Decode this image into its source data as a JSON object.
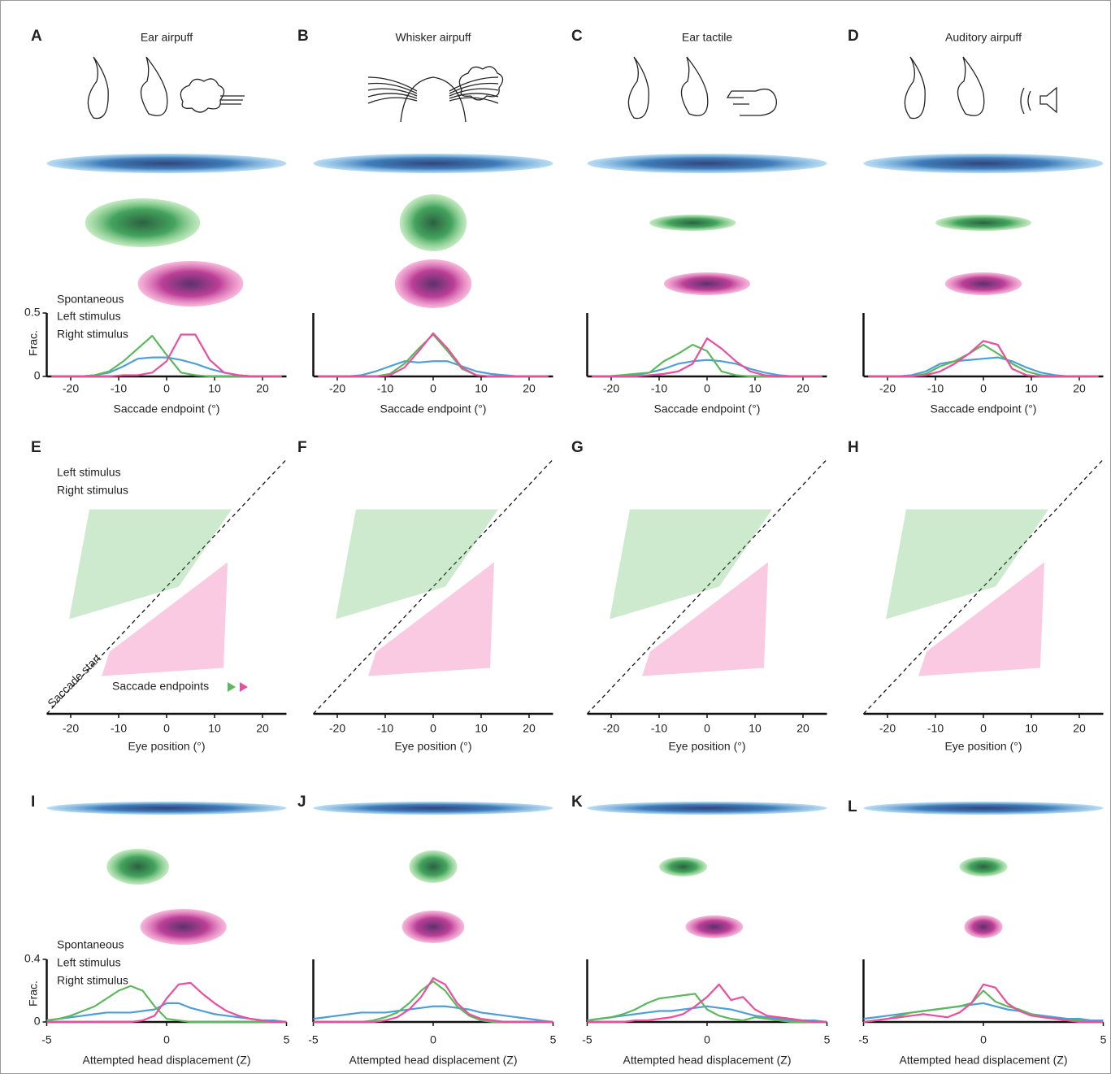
{
  "chart_data": [
    {
      "panel": "A",
      "type": "line",
      "title": "Ear airpuff",
      "xlabel": "Saccade endpoint (°)",
      "ylabel": "Frac.",
      "x": [
        -24,
        -21,
        -18,
        -15,
        -12,
        -9,
        -6,
        -3,
        0,
        3,
        6,
        9,
        12,
        15,
        18,
        21,
        24
      ],
      "xlim": [
        -25,
        25
      ],
      "xticks": [
        -20,
        -10,
        0,
        10,
        20
      ],
      "ylim": [
        0,
        0.5
      ],
      "yticks": [
        0,
        0.5
      ],
      "series": [
        {
          "name": "Spontaneous",
          "color": "#4f9fd6",
          "values": [
            0,
            0,
            0,
            0.01,
            0.03,
            0.08,
            0.14,
            0.15,
            0.15,
            0.13,
            0.1,
            0.06,
            0.03,
            0.01,
            0,
            0,
            0
          ]
        },
        {
          "name": "Left stimulus",
          "color": "#5cb85c",
          "values": [
            0,
            0,
            0,
            0.01,
            0.04,
            0.12,
            0.22,
            0.32,
            0.17,
            0.03,
            0.01,
            0,
            0,
            0,
            0,
            0,
            0
          ]
        },
        {
          "name": "Right stimulus",
          "color": "#ea4f9f",
          "values": [
            0,
            0,
            0,
            0,
            0,
            0.01,
            0.01,
            0.03,
            0.12,
            0.33,
            0.33,
            0.13,
            0.03,
            0.01,
            0,
            0,
            0
          ]
        }
      ]
    },
    {
      "panel": "B",
      "type": "line",
      "title": "Whisker airpuff",
      "xlabel": "Saccade endpoint (°)",
      "x": [
        -24,
        -21,
        -18,
        -15,
        -12,
        -9,
        -6,
        -3,
        0,
        3,
        6,
        9,
        12,
        15,
        18,
        21,
        24
      ],
      "xlim": [
        -25,
        25
      ],
      "xticks": [
        -20,
        -10,
        0,
        10,
        20
      ],
      "ylim": [
        0,
        0.5
      ],
      "series": [
        {
          "color": "#4f9fd6",
          "values": [
            0,
            0,
            0,
            0.01,
            0.04,
            0.08,
            0.12,
            0.11,
            0.12,
            0.12,
            0.08,
            0.04,
            0.02,
            0.01,
            0,
            0,
            0
          ]
        },
        {
          "color": "#5cb85c",
          "values": [
            0,
            0,
            0,
            0,
            0,
            0.02,
            0.1,
            0.22,
            0.33,
            0.2,
            0.06,
            0.01,
            0,
            0,
            0,
            0,
            0
          ]
        },
        {
          "color": "#ea4f9f",
          "values": [
            0,
            0,
            0,
            0,
            0,
            0.01,
            0.07,
            0.2,
            0.34,
            0.22,
            0.07,
            0.01,
            0,
            0,
            0,
            0,
            0
          ]
        }
      ]
    },
    {
      "panel": "C",
      "type": "line",
      "title": "Ear tactile",
      "xlabel": "Saccade endpoint (°)",
      "x": [
        -24,
        -21,
        -18,
        -15,
        -12,
        -9,
        -6,
        -3,
        0,
        3,
        6,
        9,
        12,
        15,
        18,
        21,
        24
      ],
      "xlim": [
        -25,
        25
      ],
      "xticks": [
        -20,
        -10,
        0,
        10,
        20
      ],
      "ylim": [
        0,
        0.5
      ],
      "series": [
        {
          "color": "#4f9fd6",
          "values": [
            0,
            0,
            0,
            0.01,
            0.03,
            0.06,
            0.1,
            0.12,
            0.13,
            0.12,
            0.1,
            0.06,
            0.03,
            0.01,
            0,
            0,
            0
          ]
        },
        {
          "color": "#5cb85c",
          "values": [
            0,
            0,
            0.01,
            0.02,
            0.03,
            0.12,
            0.18,
            0.25,
            0.2,
            0.04,
            0.01,
            0,
            0,
            0,
            0,
            0,
            0
          ]
        },
        {
          "color": "#ea4f9f",
          "values": [
            0,
            0,
            0,
            0,
            0.01,
            0.02,
            0.04,
            0.1,
            0.3,
            0.22,
            0.12,
            0.04,
            0.01,
            0,
            0,
            0,
            0
          ]
        }
      ]
    },
    {
      "panel": "D",
      "type": "line",
      "title": "Auditory airpuff",
      "xlabel": "Saccade endpoint (°)",
      "x": [
        -24,
        -21,
        -18,
        -15,
        -12,
        -9,
        -6,
        -3,
        0,
        3,
        6,
        9,
        12,
        15,
        18,
        21,
        24
      ],
      "xlim": [
        -25,
        25
      ],
      "xticks": [
        -20,
        -10,
        0,
        10,
        20
      ],
      "ylim": [
        0,
        0.5
      ],
      "series": [
        {
          "color": "#4f9fd6",
          "values": [
            0,
            0,
            0,
            0.01,
            0.04,
            0.1,
            0.12,
            0.13,
            0.14,
            0.15,
            0.12,
            0.07,
            0.03,
            0.01,
            0,
            0,
            0
          ]
        },
        {
          "color": "#5cb85c",
          "values": [
            0,
            0,
            0,
            0,
            0.02,
            0.08,
            0.12,
            0.18,
            0.25,
            0.18,
            0.1,
            0.04,
            0.01,
            0,
            0,
            0,
            0
          ]
        },
        {
          "color": "#ea4f9f",
          "values": [
            0,
            0,
            0,
            0,
            0.01,
            0.04,
            0.1,
            0.18,
            0.28,
            0.25,
            0.06,
            0.01,
            0,
            0,
            0,
            0,
            0
          ]
        }
      ]
    },
    {
      "panel": "E",
      "type": "arrows",
      "xlabel": "Eye position (°)",
      "xlim": [
        -25,
        25
      ],
      "xticks": [
        -20,
        -10,
        0,
        10,
        20
      ],
      "diagonal_label": "Saccade start",
      "endpoint_label": "Saccade endpoints",
      "series": [
        {
          "name": "Left stimulus",
          "color": "#5cb85c"
        },
        {
          "name": "Right stimulus",
          "color": "#ea4f9f"
        }
      ]
    },
    {
      "panel": "F",
      "type": "arrows",
      "xlabel": "Eye position (°)",
      "xlim": [
        -25,
        25
      ],
      "xticks": [
        -20,
        -10,
        0,
        10,
        20
      ]
    },
    {
      "panel": "G",
      "type": "arrows",
      "xlabel": "Eye position (°)",
      "xlim": [
        -25,
        25
      ],
      "xticks": [
        -20,
        -10,
        0,
        10,
        20
      ]
    },
    {
      "panel": "H",
      "type": "arrows",
      "xlabel": "Eye position (°)",
      "xlim": [
        -25,
        25
      ],
      "xticks": [
        -20,
        -10,
        0,
        10,
        20
      ]
    },
    {
      "panel": "I",
      "type": "line",
      "xlabel": "Attempted head displacement (Z)",
      "ylabel": "Frac.",
      "x": [
        -5,
        -4.5,
        -4,
        -3.5,
        -3,
        -2.5,
        -2,
        -1.5,
        -1,
        -0.5,
        0,
        0.5,
        1,
        1.5,
        2,
        2.5,
        3,
        3.5,
        4,
        4.5,
        5
      ],
      "xlim": [
        -5,
        5
      ],
      "xticks": [
        -5,
        0,
        5
      ],
      "ylim": [
        0,
        0.4
      ],
      "yticks": [
        0,
        0.4
      ],
      "series": [
        {
          "name": "Spontaneous",
          "color": "#4f9fd6",
          "values": [
            0.01,
            0.02,
            0.03,
            0.04,
            0.05,
            0.06,
            0.06,
            0.06,
            0.07,
            0.08,
            0.12,
            0.12,
            0.09,
            0.07,
            0.05,
            0.04,
            0.03,
            0.02,
            0.01,
            0.01,
            0
          ]
        },
        {
          "name": "Left stimulus",
          "color": "#5cb85c",
          "values": [
            0.01,
            0.02,
            0.04,
            0.07,
            0.1,
            0.15,
            0.2,
            0.23,
            0.2,
            0.1,
            0.02,
            0.01,
            0,
            0,
            0,
            0,
            0,
            0,
            0,
            0,
            0
          ]
        },
        {
          "name": "Right stimulus",
          "color": "#ea4f9f",
          "values": [
            0,
            0,
            0,
            0,
            0,
            0,
            0,
            0,
            0.01,
            0.04,
            0.15,
            0.24,
            0.25,
            0.18,
            0.12,
            0.07,
            0.04,
            0.02,
            0.01,
            0,
            0
          ]
        }
      ]
    },
    {
      "panel": "J",
      "type": "line",
      "xlabel": "Attempted head displacement (Z)",
      "x": [
        -5,
        -4.5,
        -4,
        -3.5,
        -3,
        -2.5,
        -2,
        -1.5,
        -1,
        -0.5,
        0,
        0.5,
        1,
        1.5,
        2,
        2.5,
        3,
        3.5,
        4,
        4.5,
        5
      ],
      "xlim": [
        -5,
        5
      ],
      "xticks": [
        -5,
        0,
        5
      ],
      "ylim": [
        0,
        0.4
      ],
      "series": [
        {
          "color": "#4f9fd6",
          "values": [
            0.02,
            0.03,
            0.04,
            0.05,
            0.06,
            0.06,
            0.06,
            0.07,
            0.08,
            0.09,
            0.1,
            0.1,
            0.09,
            0.08,
            0.06,
            0.05,
            0.04,
            0.03,
            0.02,
            0.01,
            0
          ]
        },
        {
          "color": "#5cb85c",
          "values": [
            0,
            0,
            0,
            0,
            0,
            0.01,
            0.03,
            0.06,
            0.12,
            0.2,
            0.26,
            0.2,
            0.1,
            0.04,
            0.01,
            0,
            0,
            0,
            0,
            0,
            0
          ]
        },
        {
          "color": "#ea4f9f",
          "values": [
            0,
            0,
            0,
            0,
            0,
            0,
            0.01,
            0.03,
            0.08,
            0.16,
            0.28,
            0.24,
            0.12,
            0.05,
            0.02,
            0.01,
            0,
            0,
            0,
            0,
            0
          ]
        }
      ]
    },
    {
      "panel": "K",
      "type": "line",
      "xlabel": "Attempted head displacement (Z)",
      "x": [
        -5,
        -4.5,
        -4,
        -3.5,
        -3,
        -2.5,
        -2,
        -1.5,
        -1,
        -0.5,
        0,
        0.5,
        1,
        1.5,
        2,
        2.5,
        3,
        3.5,
        4,
        4.5,
        5
      ],
      "xlim": [
        -5,
        5
      ],
      "xticks": [
        -5,
        0,
        5
      ],
      "ylim": [
        0,
        0.4
      ],
      "series": [
        {
          "color": "#4f9fd6",
          "values": [
            0.01,
            0.02,
            0.03,
            0.04,
            0.05,
            0.06,
            0.07,
            0.07,
            0.08,
            0.09,
            0.1,
            0.09,
            0.08,
            0.06,
            0.04,
            0.03,
            0.02,
            0.01,
            0.01,
            0.01,
            0
          ]
        },
        {
          "color": "#5cb85c",
          "values": [
            0.01,
            0.02,
            0.03,
            0.05,
            0.08,
            0.12,
            0.15,
            0.16,
            0.17,
            0.18,
            0.08,
            0.04,
            0.02,
            0.01,
            0.03,
            0.02,
            0.01,
            0,
            0,
            0,
            0
          ]
        },
        {
          "color": "#ea4f9f",
          "values": [
            0,
            0,
            0,
            0,
            0.01,
            0.01,
            0.02,
            0.03,
            0.05,
            0.1,
            0.16,
            0.24,
            0.14,
            0.16,
            0.08,
            0.04,
            0.03,
            0.02,
            0.01,
            0,
            0
          ]
        }
      ]
    },
    {
      "panel": "L",
      "type": "line",
      "xlabel": "Attempted head displacement (Z)",
      "x": [
        -5,
        -4.5,
        -4,
        -3.5,
        -3,
        -2.5,
        -2,
        -1.5,
        -1,
        -0.5,
        0,
        0.5,
        1,
        1.5,
        2,
        2.5,
        3,
        3.5,
        4,
        4.5,
        5
      ],
      "xlim": [
        -5,
        5
      ],
      "xticks": [
        -5,
        0,
        5
      ],
      "ylim": [
        0,
        0.4
      ],
      "series": [
        {
          "color": "#4f9fd6",
          "values": [
            0.02,
            0.03,
            0.04,
            0.05,
            0.06,
            0.07,
            0.08,
            0.09,
            0.1,
            0.11,
            0.12,
            0.1,
            0.08,
            0.07,
            0.05,
            0.04,
            0.03,
            0.02,
            0.02,
            0.01,
            0.01
          ]
        },
        {
          "color": "#5cb85c",
          "values": [
            0,
            0.01,
            0.02,
            0.04,
            0.06,
            0.07,
            0.08,
            0.09,
            0.1,
            0.12,
            0.2,
            0.13,
            0.1,
            0.08,
            0.05,
            0.03,
            0.02,
            0.01,
            0.01,
            0,
            0
          ]
        },
        {
          "color": "#ea4f9f",
          "values": [
            0,
            0.01,
            0.02,
            0.03,
            0.04,
            0.05,
            0.04,
            0.03,
            0.06,
            0.12,
            0.24,
            0.22,
            0.12,
            0.07,
            0.04,
            0.03,
            0.02,
            0.01,
            0,
            0,
            0
          ]
        }
      ]
    }
  ]
}
